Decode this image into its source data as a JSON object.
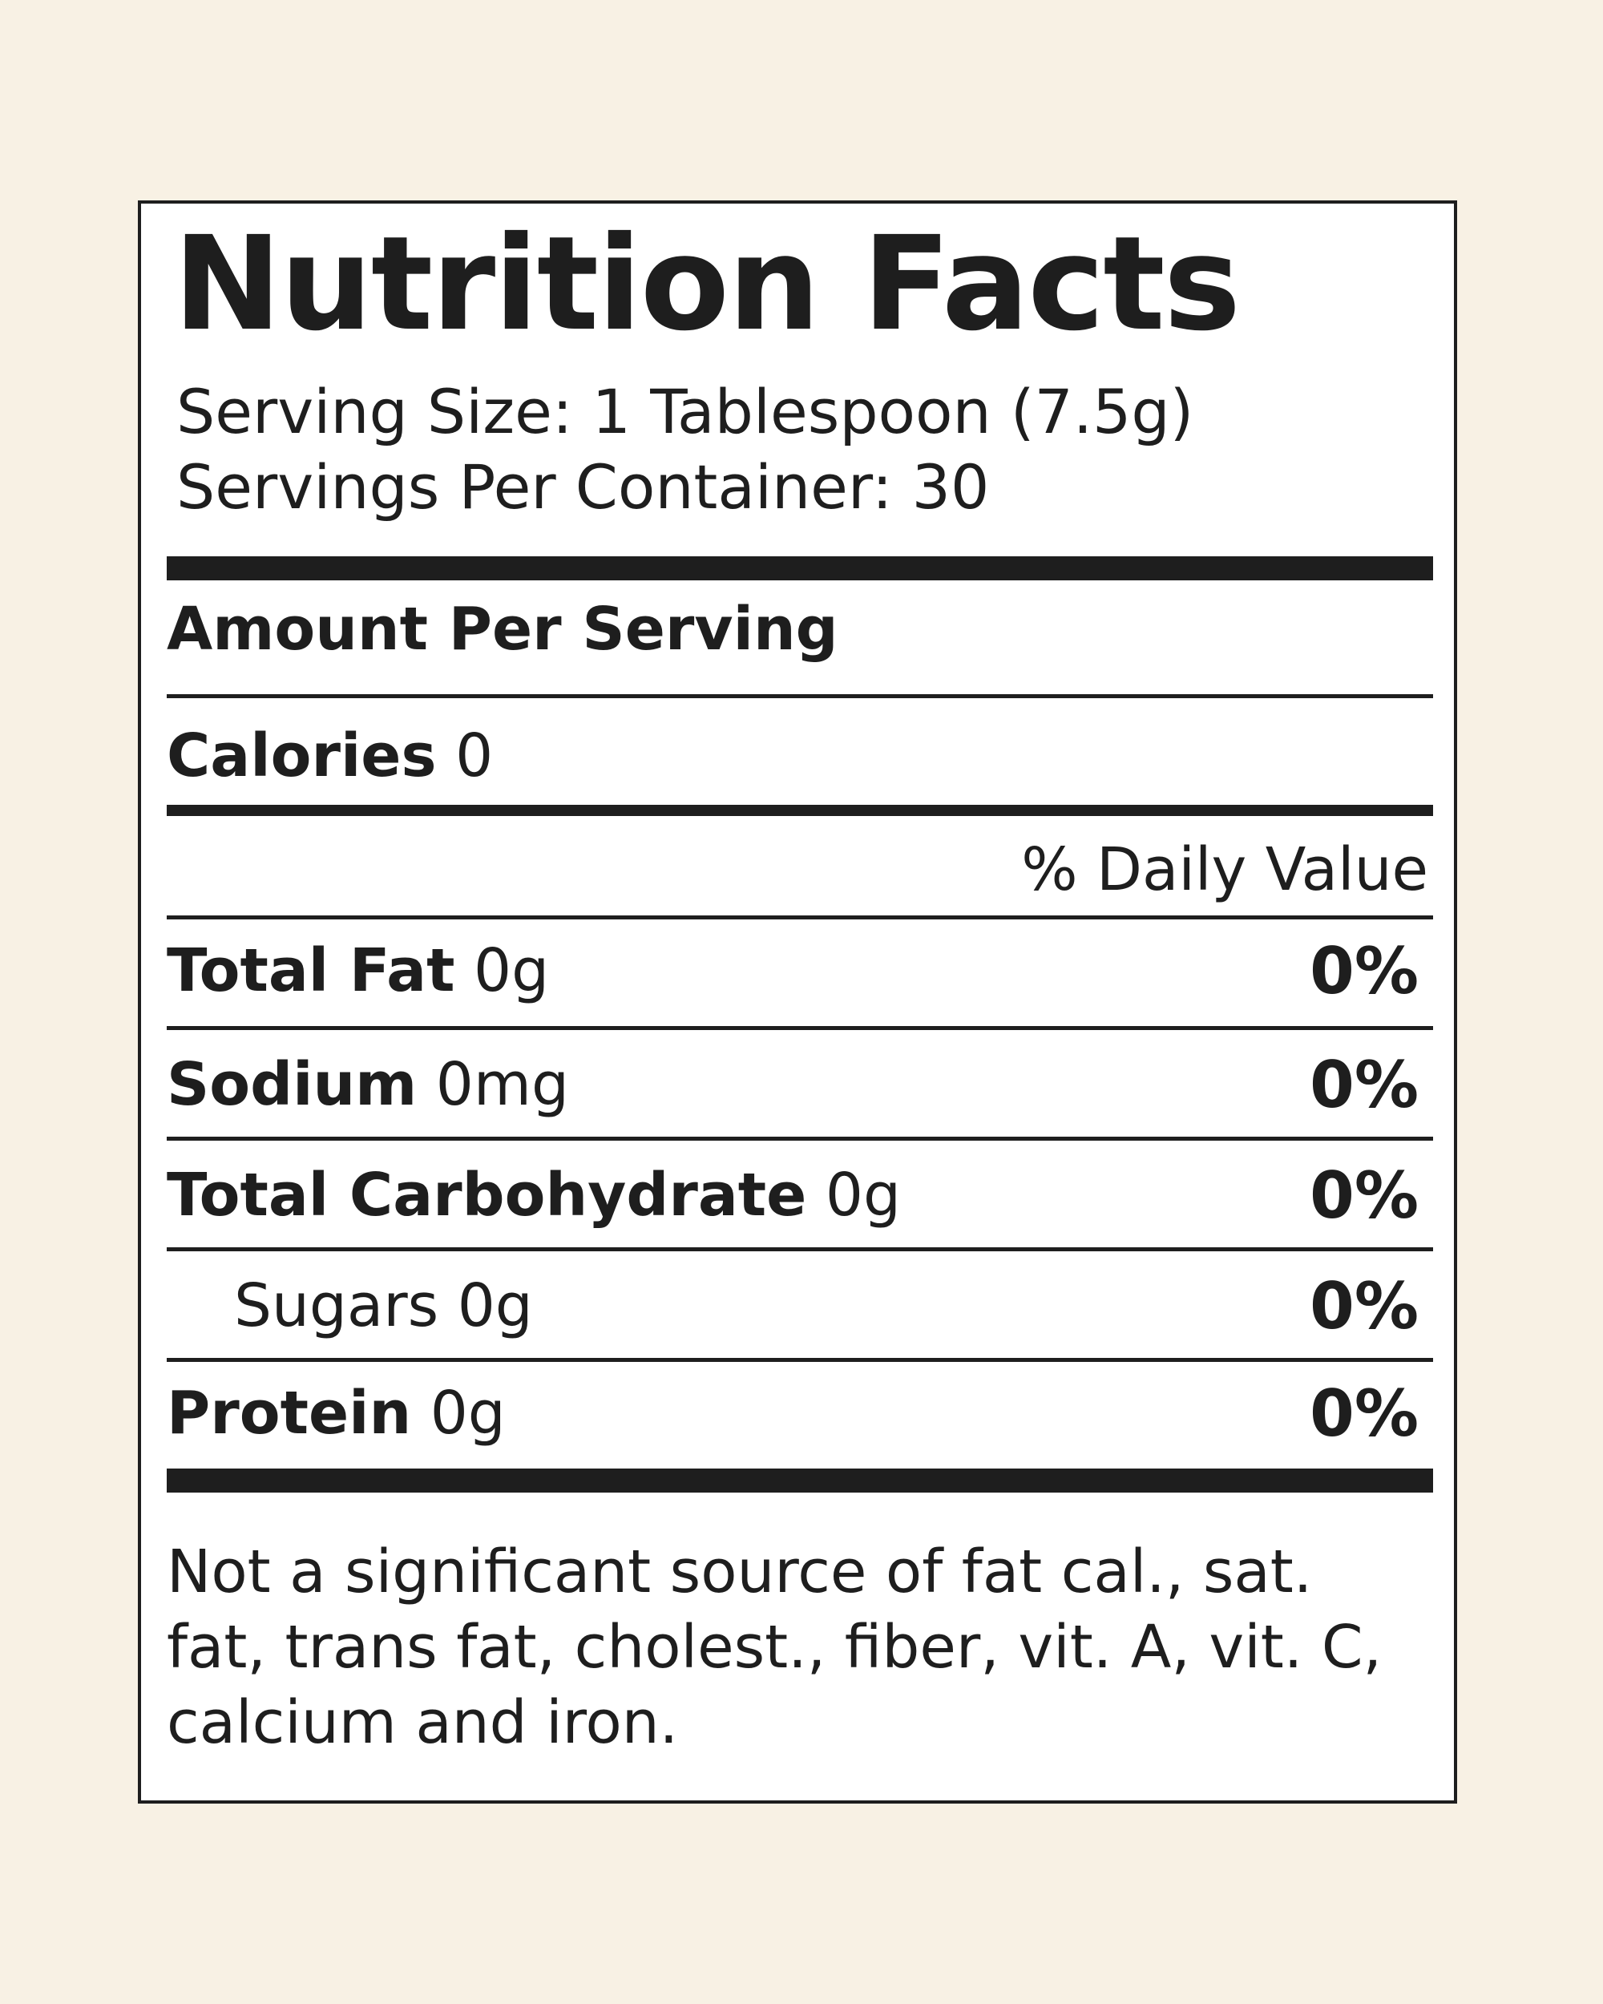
{
  "title": "Nutrition Facts",
  "serving_size": "Serving Size: 1 Tablespoon (7.5g)",
  "servings_per_container": "Servings Per Container: 30",
  "amount_per_serving": "Amount Per Serving",
  "calories": {
    "label": "Calories",
    "value": "0"
  },
  "daily_value_header": "% Daily Value",
  "nutrients": [
    {
      "label": "Total Fat",
      "amount": "0g",
      "dv": "0%"
    },
    {
      "label": "Sodium",
      "amount": "0mg",
      "dv": "0%"
    },
    {
      "label": "Total Carbohydrate",
      "amount": "0g",
      "dv": "0%"
    },
    {
      "label": "Sugars 0g",
      "amount": "",
      "dv": "0%"
    },
    {
      "label": "Protein",
      "amount": "0g",
      "dv": "0%"
    }
  ],
  "footnote": "Not a significant source of fat cal., sat. fat, trans fat, cholest., fiber, vit. A, vit. C, calcium and iron."
}
